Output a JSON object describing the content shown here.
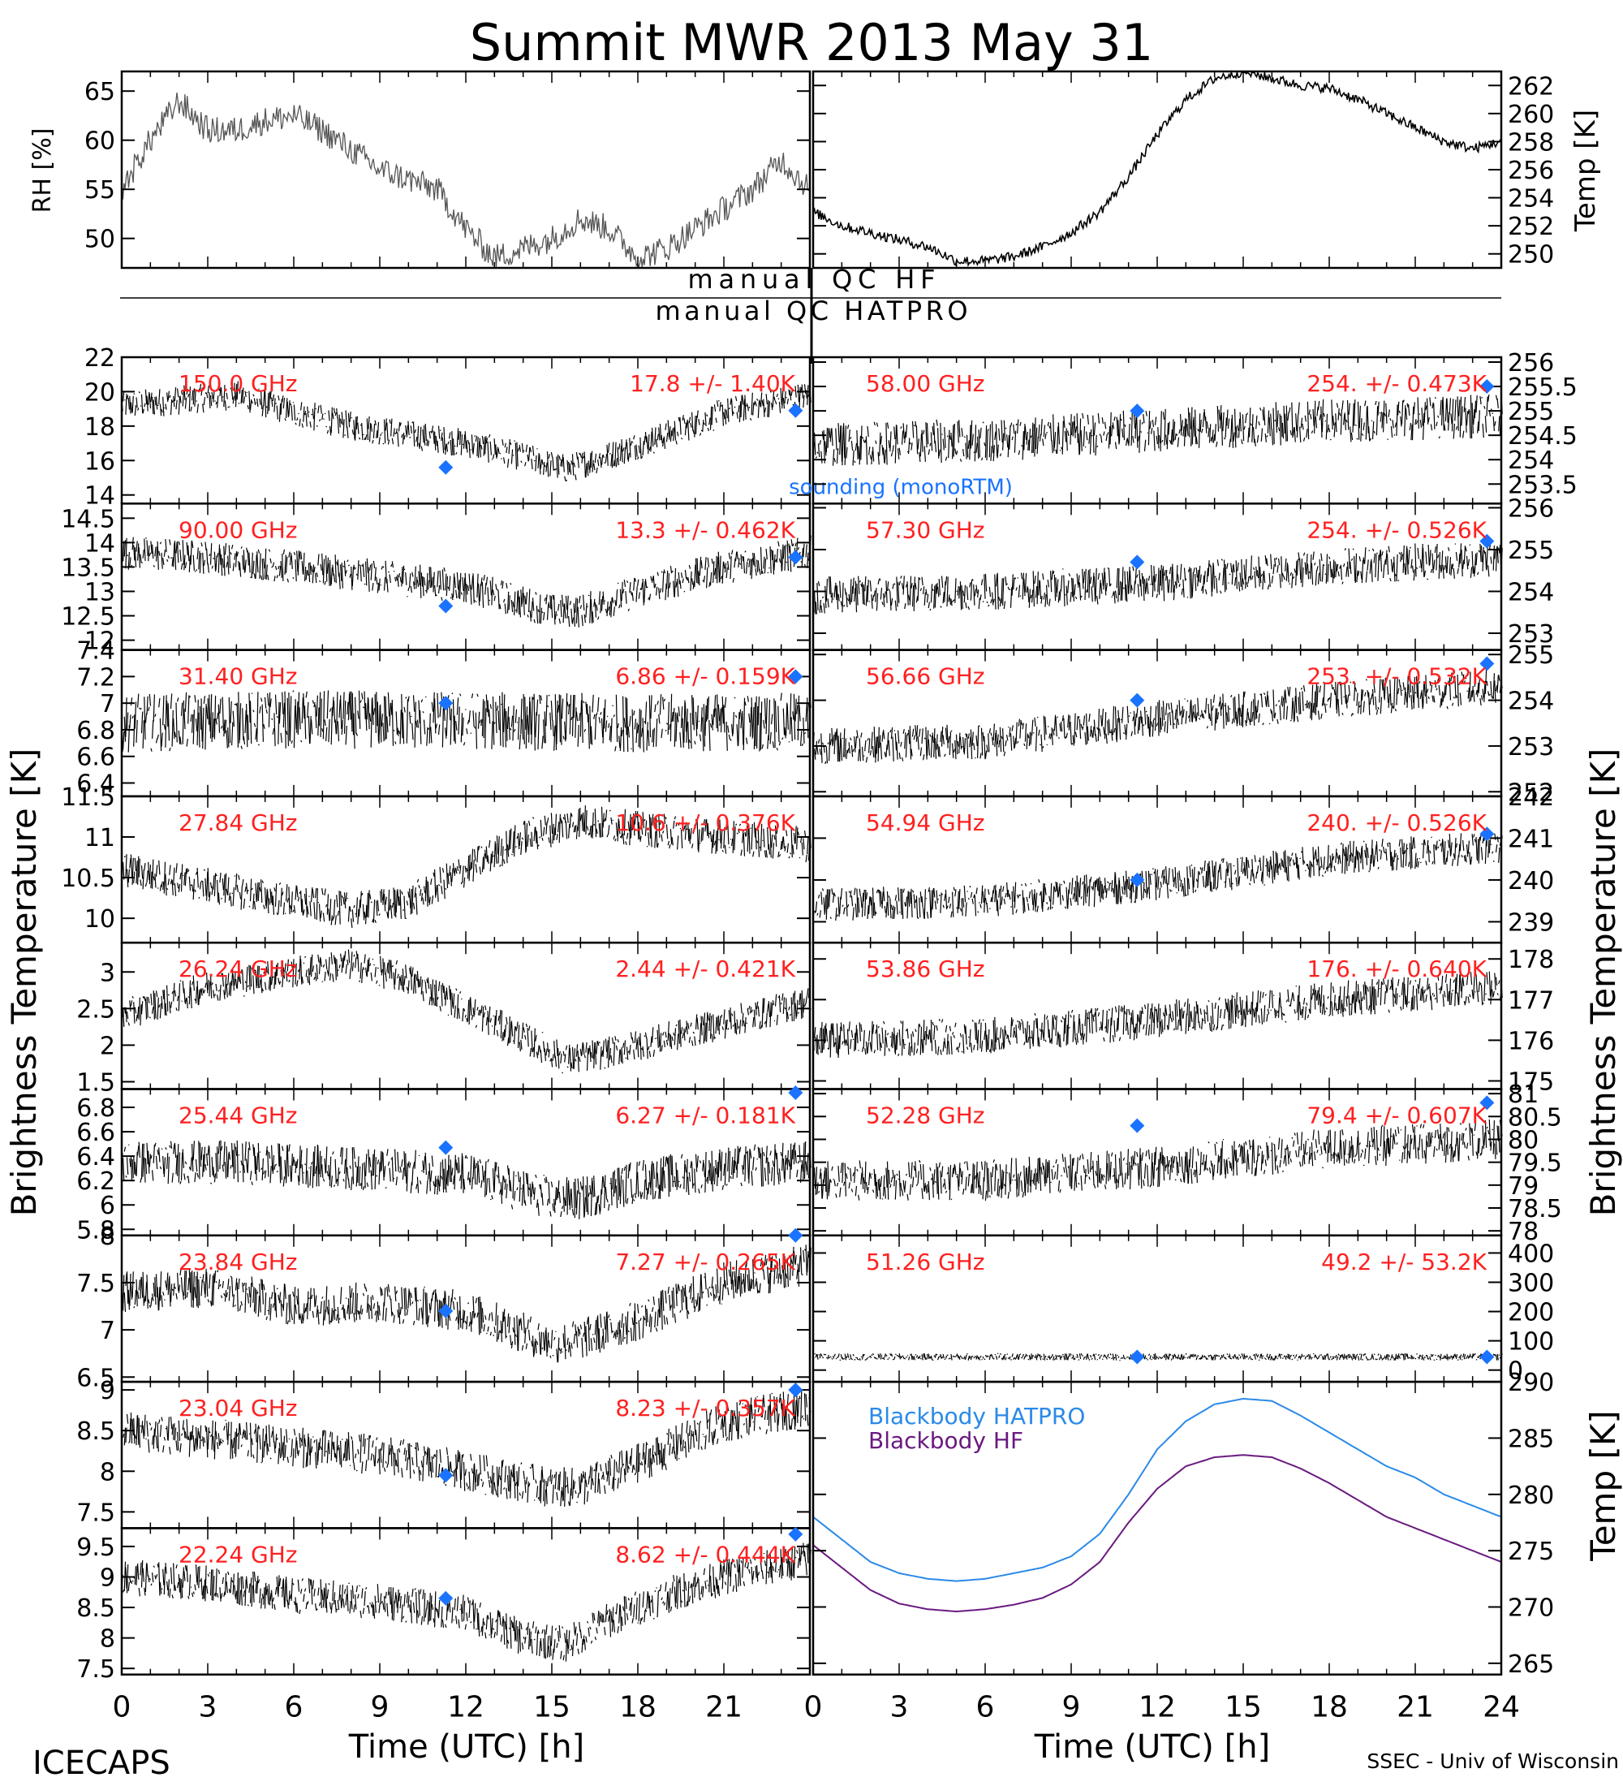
{
  "title": "Summit MWR 2013 May 31",
  "footer": {
    "left": "ICECAPS",
    "right": "SSEC - Univ of Wisconsin"
  },
  "qc_labels": {
    "hf": "manual QC HF",
    "hatpro": "manual QC HATPRO"
  },
  "colors": {
    "data": "#000000",
    "freq_label": "#ff2020",
    "sounding": "#1a73ff",
    "bb_hatpro": "#2a8ae8",
    "bb_hf": "#6a1a80"
  },
  "axes_text": {
    "left_xlabel": "Time (UTC) [h]",
    "right_xlabel": "Time (UTC) [h]",
    "left_tb_label": "Brightness Temperature [K]",
    "right_tb_label": "Brightness Temperature [K]",
    "bb_ylabel": "Temp [K]",
    "rh_ylabel": "RH [%]",
    "temp_ylabel": "Temp [K]",
    "left_xticks": [
      "0",
      "3",
      "6",
      "9",
      "12",
      "15",
      "18",
      "21"
    ],
    "right_xticks": [
      "0",
      "3",
      "6",
      "9",
      "12",
      "15",
      "18",
      "21",
      "24"
    ]
  },
  "chart_data": [
    {
      "type": "line",
      "panel": "rh",
      "xlim": [
        0,
        24
      ],
      "ylim": [
        47,
        67
      ],
      "ylabel": "RH [%]",
      "yticks": [
        50,
        55,
        60,
        65
      ],
      "x": [
        0,
        1,
        2,
        3,
        4,
        5,
        6,
        7,
        8,
        9,
        10,
        11,
        12,
        13,
        14,
        15,
        16,
        17,
        18,
        19,
        20,
        21,
        22,
        23,
        24
      ],
      "values": [
        55,
        60,
        64,
        61,
        61,
        62,
        62.5,
        61,
        59,
        57,
        56,
        55,
        51,
        48,
        49,
        50,
        52,
        51,
        48,
        49,
        51,
        53,
        55,
        58,
        55
      ]
    },
    {
      "type": "line",
      "panel": "surface_temp",
      "xlim": [
        0,
        24
      ],
      "ylim": [
        249,
        263
      ],
      "ylabel": "Temp [K]",
      "yticks": [
        250,
        252,
        254,
        256,
        258,
        260,
        262
      ],
      "x": [
        0,
        1,
        2,
        3,
        4,
        5,
        6,
        7,
        8,
        9,
        10,
        11,
        12,
        13,
        14,
        15,
        16,
        17,
        18,
        19,
        20,
        21,
        22,
        23,
        24
      ],
      "values": [
        253,
        252,
        251.5,
        251,
        250.5,
        249.5,
        249.5,
        249.8,
        250.5,
        251.5,
        253,
        255.5,
        258.5,
        261,
        262.5,
        263,
        262.5,
        262,
        261.8,
        261,
        260,
        259,
        258,
        257.5,
        258
      ]
    },
    {
      "type": "scatter",
      "panel": "tb",
      "side": "left",
      "freq": "150.0 GHz",
      "stat": "17.8 +/- 1.40K",
      "xlim": [
        0,
        24
      ],
      "ylim": [
        13.5,
        22
      ],
      "yticks": [
        14,
        16,
        18,
        20,
        22
      ],
      "x": [
        0,
        2,
        4,
        6,
        8,
        10,
        12,
        14,
        15.5,
        17,
        19,
        21,
        23,
        24
      ],
      "values": [
        19.2,
        19.5,
        19.8,
        18.8,
        18,
        17.5,
        17,
        16.2,
        15.5,
        16.3,
        17.5,
        18.8,
        19.5,
        19.8
      ],
      "noise": 0.85,
      "sounding": [
        {
          "x": 11.3,
          "y": 15.6
        },
        {
          "x": 23.5,
          "y": 18.9
        }
      ],
      "sounding_label": "sounding (monoRTM)"
    },
    {
      "type": "scatter",
      "panel": "tb",
      "side": "left",
      "freq": "90.00 GHz",
      "stat": "13.3 +/- 0.462K",
      "xlim": [
        0,
        24
      ],
      "ylim": [
        11.8,
        14.8
      ],
      "yticks": [
        12.0,
        12.5,
        13.0,
        13.5,
        14.0,
        14.5
      ],
      "x": [
        0,
        3,
        6,
        9,
        12,
        15,
        16,
        18,
        21,
        24
      ],
      "values": [
        13.8,
        13.7,
        13.5,
        13.3,
        13.1,
        12.6,
        12.6,
        13.0,
        13.5,
        13.8
      ],
      "noise": 0.35,
      "sounding": [
        {
          "x": 11.3,
          "y": 12.7
        },
        {
          "x": 23.5,
          "y": 13.7
        }
      ]
    },
    {
      "type": "scatter",
      "panel": "tb",
      "side": "left",
      "freq": "31.40 GHz",
      "stat": "6.86 +/- 0.159K",
      "xlim": [
        0,
        24
      ],
      "ylim": [
        6.3,
        7.4
      ],
      "yticks": [
        6.4,
        6.6,
        6.8,
        7.0,
        7.2,
        7.4
      ],
      "x": [
        0,
        6,
        12,
        18,
        24
      ],
      "values": [
        6.85,
        6.88,
        6.87,
        6.85,
        6.86
      ],
      "noise": 0.22,
      "sounding": [
        {
          "x": 11.3,
          "y": 7.0
        },
        {
          "x": 23.5,
          "y": 7.2
        }
      ]
    },
    {
      "type": "scatter",
      "panel": "tb",
      "side": "left",
      "freq": "27.84 GHz",
      "stat": "10.6 +/- 0.376K",
      "xlim": [
        0,
        24
      ],
      "ylim": [
        9.7,
        11.5
      ],
      "yticks": [
        10.0,
        10.5,
        11.0,
        11.5
      ],
      "x": [
        0,
        3,
        6,
        8,
        10,
        12,
        14,
        16,
        18,
        21,
        24
      ],
      "values": [
        10.6,
        10.4,
        10.2,
        10.1,
        10.2,
        10.6,
        11.0,
        11.2,
        11.1,
        11.0,
        10.9
      ],
      "noise": 0.22,
      "sounding": []
    },
    {
      "type": "scatter",
      "panel": "tb",
      "side": "left",
      "freq": "26.24 GHz",
      "stat": "2.44 +/- 0.421K",
      "xlim": [
        0,
        24
      ],
      "ylim": [
        1.4,
        3.4
      ],
      "yticks": [
        1.5,
        2.0,
        2.5,
        3.0
      ],
      "x": [
        0,
        3,
        6,
        8,
        10,
        12,
        14,
        15.5,
        17,
        19,
        21,
        24
      ],
      "values": [
        2.4,
        2.8,
        3.0,
        3.1,
        2.9,
        2.5,
        2.1,
        1.8,
        1.9,
        2.1,
        2.3,
        2.6
      ],
      "noise": 0.22,
      "sounding": []
    },
    {
      "type": "scatter",
      "panel": "tb",
      "side": "left",
      "freq": "25.44 GHz",
      "stat": "6.27 +/- 0.181K",
      "xlim": [
        0,
        24
      ],
      "ylim": [
        5.75,
        6.95
      ],
      "yticks": [
        5.8,
        6.0,
        6.2,
        6.4,
        6.6,
        6.8
      ],
      "x": [
        0,
        4,
        8,
        12,
        15,
        16,
        18,
        21,
        24
      ],
      "values": [
        6.35,
        6.35,
        6.3,
        6.25,
        6.05,
        6.05,
        6.2,
        6.3,
        6.35
      ],
      "noise": 0.18,
      "sounding": [
        {
          "x": 11.3,
          "y": 6.47
        },
        {
          "x": 23.5,
          "y": 6.92
        }
      ]
    },
    {
      "type": "scatter",
      "panel": "tb",
      "side": "left",
      "freq": "23.84 GHz",
      "stat": "7.27 +/- 0.265K",
      "xlim": [
        0,
        24
      ],
      "ylim": [
        6.45,
        8.0
      ],
      "yticks": [
        6.5,
        7.0,
        7.5,
        8.0
      ],
      "x": [
        0,
        3,
        6,
        9,
        12,
        15,
        16,
        18,
        21,
        24
      ],
      "values": [
        7.4,
        7.45,
        7.25,
        7.3,
        7.2,
        6.85,
        6.9,
        7.1,
        7.5,
        7.7
      ],
      "noise": 0.22,
      "sounding": [
        {
          "x": 11.3,
          "y": 7.2
        },
        {
          "x": 23.5,
          "y": 8.0
        }
      ]
    },
    {
      "type": "scatter",
      "panel": "tb",
      "side": "left",
      "freq": "23.04 GHz",
      "stat": "8.23 +/- 0.357K",
      "xlim": [
        0,
        24
      ],
      "ylim": [
        7.3,
        9.1
      ],
      "yticks": [
        7.5,
        8.0,
        8.5,
        9.0
      ],
      "x": [
        0,
        3,
        6,
        9,
        12,
        15,
        16,
        18,
        21,
        24
      ],
      "values": [
        8.5,
        8.4,
        8.3,
        8.2,
        8.0,
        7.8,
        7.8,
        8.1,
        8.6,
        8.8
      ],
      "noise": 0.25,
      "sounding": [
        {
          "x": 11.3,
          "y": 7.95
        },
        {
          "x": 23.5,
          "y": 9.0
        }
      ]
    },
    {
      "type": "scatter",
      "panel": "tb",
      "side": "left",
      "freq": "22.24 GHz",
      "stat": "8.62 +/- 0.444K",
      "xlim": [
        0,
        24
      ],
      "ylim": [
        7.4,
        9.8
      ],
      "yticks": [
        7.5,
        8.0,
        8.5,
        9.0,
        9.5
      ],
      "x": [
        0,
        3,
        6,
        9,
        12,
        14,
        15.5,
        17,
        19,
        21,
        24
      ],
      "values": [
        9.0,
        8.9,
        8.7,
        8.6,
        8.4,
        8.0,
        7.9,
        8.3,
        8.7,
        9.0,
        9.3
      ],
      "noise": 0.3,
      "sounding": [
        {
          "x": 11.3,
          "y": 8.65
        },
        {
          "x": 23.5,
          "y": 9.7
        }
      ]
    },
    {
      "type": "scatter",
      "panel": "tb",
      "side": "right",
      "freq": "58.00 GHz",
      "stat": "254. +/- 0.473K",
      "xlim": [
        0,
        24
      ],
      "ylim": [
        253.1,
        256.1
      ],
      "yticks": [
        253.5,
        254.0,
        254.5,
        255.0,
        255.5,
        256.0
      ],
      "x": [
        0,
        6,
        12,
        18,
        24
      ],
      "values": [
        254.3,
        254.4,
        254.6,
        254.8,
        254.9
      ],
      "noise": 0.45,
      "sounding": [
        {
          "x": 11.3,
          "y": 255.0
        },
        {
          "x": 23.5,
          "y": 255.5
        }
      ]
    },
    {
      "type": "scatter",
      "panel": "tb",
      "side": "right",
      "freq": "57.30 GHz",
      "stat": "254. +/- 0.526K",
      "xlim": [
        0,
        24
      ],
      "ylim": [
        252.6,
        256.1
      ],
      "yticks": [
        253,
        254,
        255,
        256
      ],
      "x": [
        0,
        6,
        12,
        18,
        24
      ],
      "values": [
        253.9,
        254.0,
        254.2,
        254.6,
        254.8
      ],
      "noise": 0.45,
      "sounding": [
        {
          "x": 11.3,
          "y": 254.7
        },
        {
          "x": 23.5,
          "y": 255.2
        }
      ]
    },
    {
      "type": "scatter",
      "panel": "tb",
      "side": "right",
      "freq": "56.66 GHz",
      "stat": "253. +/- 0.532K",
      "xlim": [
        0,
        24
      ],
      "ylim": [
        251.9,
        255.1
      ],
      "yticks": [
        252,
        253,
        254,
        255
      ],
      "x": [
        0,
        6,
        12,
        18,
        24
      ],
      "values": [
        253.0,
        253.1,
        253.6,
        254.0,
        254.3
      ],
      "noise": 0.4,
      "sounding": [
        {
          "x": 11.3,
          "y": 254.0
        },
        {
          "x": 23.5,
          "y": 254.8
        }
      ]
    },
    {
      "type": "scatter",
      "panel": "tb",
      "side": "right",
      "freq": "54.94 GHz",
      "stat": "240. +/- 0.526K",
      "xlim": [
        0,
        24
      ],
      "ylim": [
        238.5,
        242
      ],
      "yticks": [
        239,
        240,
        241,
        242
      ],
      "x": [
        0,
        6,
        12,
        18,
        24
      ],
      "values": [
        239.4,
        239.5,
        239.9,
        240.5,
        240.8
      ],
      "noise": 0.4,
      "sounding": [
        {
          "x": 11.3,
          "y": 240.0
        },
        {
          "x": 23.5,
          "y": 241.1
        }
      ]
    },
    {
      "type": "scatter",
      "panel": "tb",
      "side": "right",
      "freq": "53.86 GHz",
      "stat": "176. +/- 0.640K",
      "xlim": [
        0,
        24
      ],
      "ylim": [
        174.8,
        178.4
      ],
      "yticks": [
        175,
        176,
        177,
        178
      ],
      "x": [
        0,
        6,
        12,
        18,
        24
      ],
      "values": [
        176.0,
        176.1,
        176.5,
        177.0,
        177.3
      ],
      "noise": 0.45,
      "sounding": []
    },
    {
      "type": "scatter",
      "panel": "tb",
      "side": "right",
      "freq": "52.28 GHz",
      "stat": "79.4 +/- 0.607K",
      "xlim": [
        0,
        24
      ],
      "ylim": [
        77.9,
        81.1
      ],
      "yticks": [
        78.0,
        78.5,
        79.0,
        79.5,
        80.0,
        80.5,
        81.0
      ],
      "x": [
        0,
        6,
        12,
        18,
        24
      ],
      "values": [
        79.1,
        79.1,
        79.4,
        79.8,
        80.0
      ],
      "noise": 0.45,
      "sounding": [
        {
          "x": 11.3,
          "y": 80.3
        },
        {
          "x": 23.5,
          "y": 80.8
        }
      ]
    },
    {
      "type": "scatter",
      "panel": "tb",
      "side": "right",
      "freq": "51.26 GHz",
      "stat": "49.2 +/- 53.2K",
      "xlim": [
        0,
        24
      ],
      "ylim": [
        -40,
        460
      ],
      "yticks": [
        0,
        100,
        200,
        300,
        400
      ],
      "x": [
        0,
        24
      ],
      "values": [
        45,
        45
      ],
      "noise": 12,
      "sounding": [
        {
          "x": 11.3,
          "y": 45
        },
        {
          "x": 23.5,
          "y": 45
        }
      ]
    },
    {
      "type": "line",
      "panel": "blackbody",
      "xlim": [
        0,
        24
      ],
      "ylim": [
        264,
        290
      ],
      "ylabel": "Temp [K]",
      "yticks": [
        265,
        270,
        275,
        280,
        285,
        290
      ],
      "series": [
        {
          "name": "Blackbody HATPRO",
          "x": [
            0,
            1,
            2,
            3,
            4,
            5,
            6,
            7,
            8,
            9,
            10,
            11,
            12,
            13,
            14,
            15,
            16,
            17,
            18,
            19,
            20,
            21,
            22,
            23,
            24
          ],
          "values": [
            278,
            276,
            274,
            273,
            272.5,
            272.3,
            272.5,
            273,
            273.5,
            274.5,
            276.5,
            280,
            284,
            286.5,
            288,
            288.5,
            288.3,
            287,
            285.5,
            284,
            282.5,
            281.5,
            280,
            279,
            278
          ]
        },
        {
          "name": "Blackbody HF",
          "x": [
            0,
            1,
            2,
            3,
            4,
            5,
            6,
            7,
            8,
            9,
            10,
            11,
            12,
            13,
            14,
            15,
            16,
            17,
            18,
            19,
            20,
            21,
            22,
            23,
            24
          ],
          "values": [
            275.5,
            273.5,
            271.5,
            270.3,
            269.8,
            269.6,
            269.8,
            270.2,
            270.8,
            272,
            274,
            277.5,
            280.5,
            282.5,
            283.3,
            283.5,
            283.3,
            282.3,
            281,
            279.5,
            278,
            277,
            276,
            275,
            274
          ]
        }
      ]
    }
  ]
}
